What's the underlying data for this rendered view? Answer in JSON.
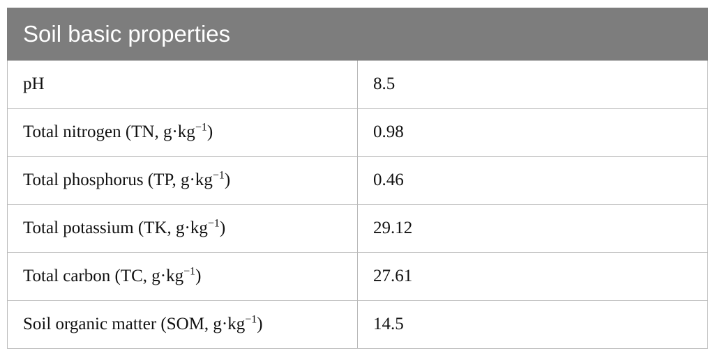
{
  "table": {
    "header": "Soil basic properties",
    "rows": [
      {
        "property": "pH",
        "unit_base": "",
        "unit_exp": "",
        "unit_close": "",
        "value": "8.5"
      },
      {
        "property": "Total nitrogen (TN, g·kg",
        "unit_exp": "−1",
        "unit_close": ")",
        "value": "0.98"
      },
      {
        "property": "Total phosphorus (TP, g·kg",
        "unit_exp": "−1",
        "unit_close": ")",
        "value": "0.46"
      },
      {
        "property": "Total potassium (TK, g·kg",
        "unit_exp": "−1",
        "unit_close": ")",
        "value": "29.12"
      },
      {
        "property": "Total carbon (TC, g·kg",
        "unit_exp": "−1",
        "unit_close": ")",
        "value": "27.61"
      },
      {
        "property": "Soil organic matter (SOM, g·kg",
        "unit_exp": "−1",
        "unit_close": ")",
        "value": "14.5"
      }
    ]
  },
  "colors": {
    "header_bg": "#7d7d7d",
    "header_text": "#ffffff",
    "border": "#b9b9b9"
  }
}
